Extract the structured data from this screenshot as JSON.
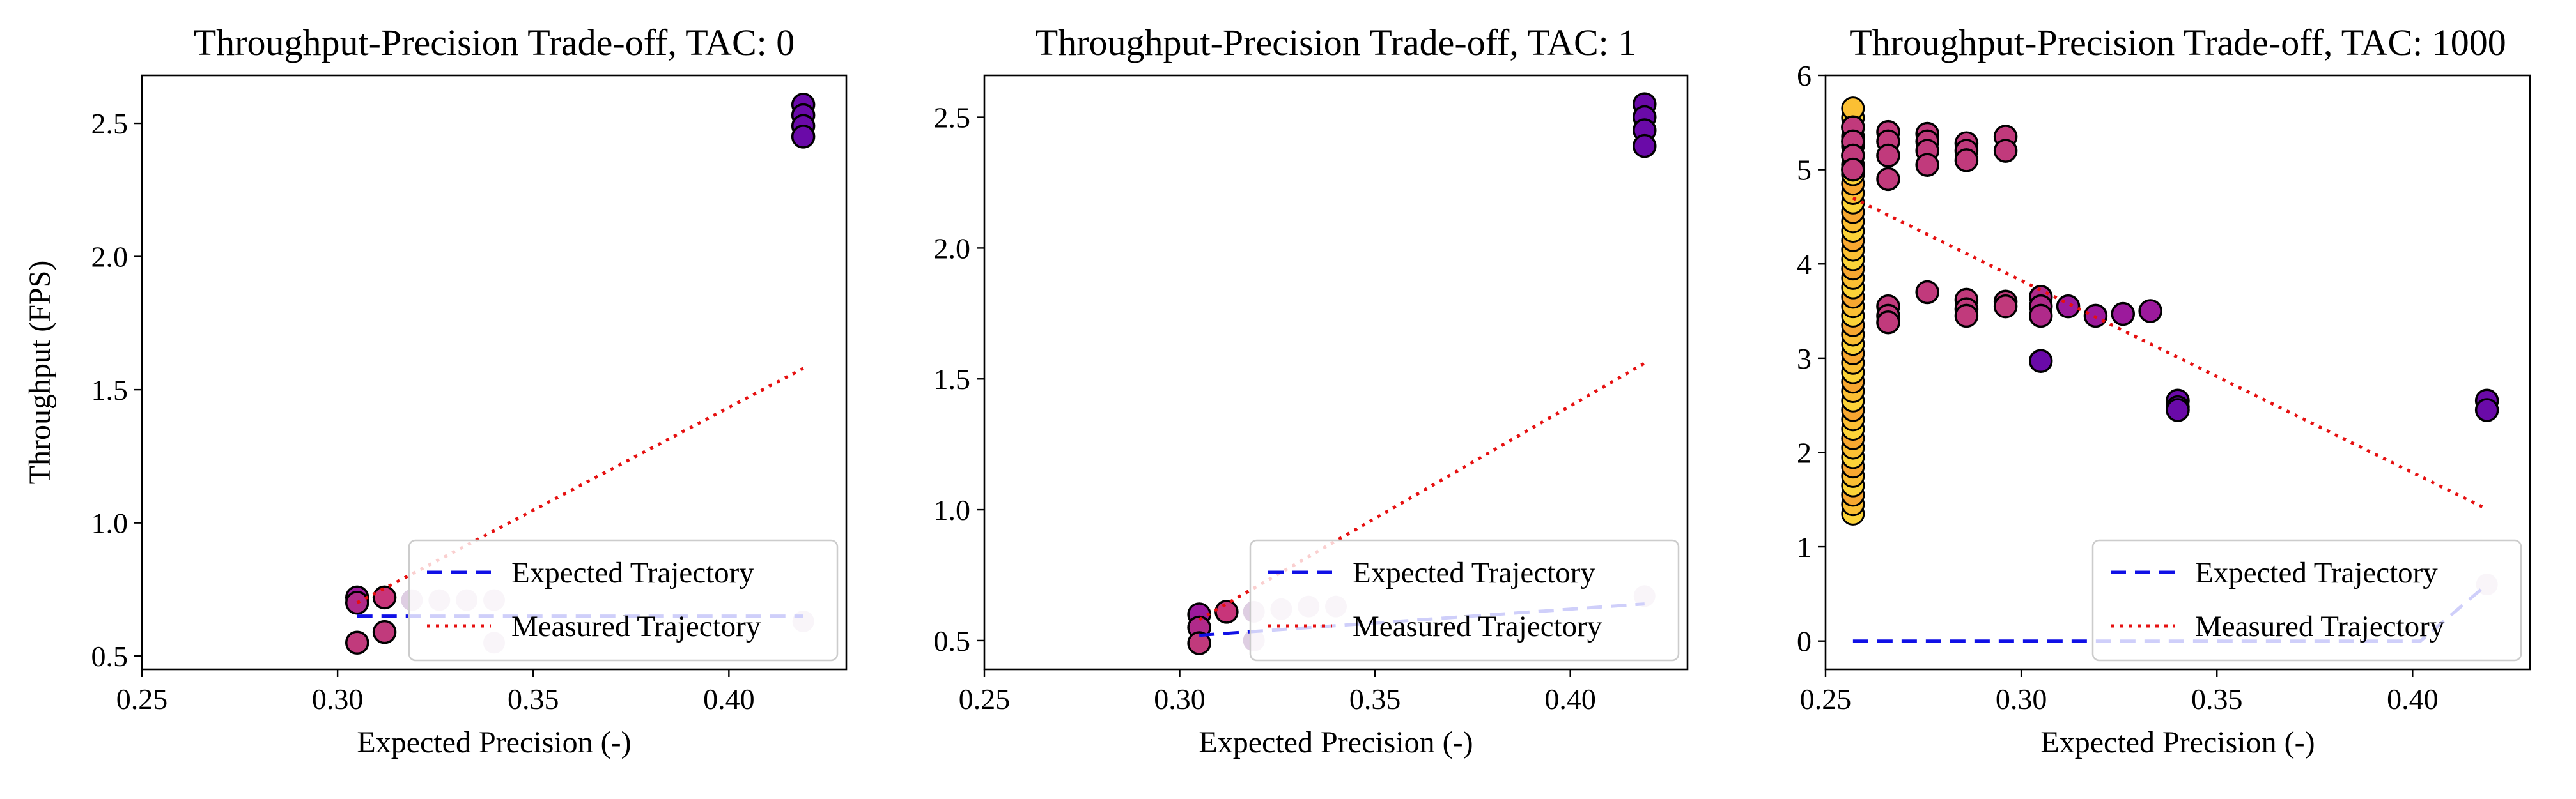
{
  "figure": {
    "ylabel": "Throughput (FPS)",
    "legend": {
      "placement": "lower right"
    }
  },
  "chart_data": [
    {
      "type": "scatter",
      "title": "Throughput-Precision Trade-off, TAC: 0",
      "xlabel": "Expected Precision (-)",
      "ylabel": "Throughput (FPS)",
      "xlim": [
        0.25,
        0.43
      ],
      "ylim": [
        0.45,
        2.68
      ],
      "xticks": [
        0.25,
        0.3,
        0.35,
        0.4
      ],
      "xtick_labels": [
        "0.25",
        "0.30",
        "0.35",
        "0.40"
      ],
      "yticks": [
        0.5,
        1.0,
        1.5,
        2.0,
        2.5
      ],
      "ytick_labels": [
        "0.5",
        "1.0",
        "1.5",
        "2.0",
        "2.5"
      ],
      "grid": false,
      "legend_placement": "lower right",
      "points": [
        {
          "x": 0.419,
          "y": 2.57,
          "color": "#6a0aa8",
          "outline": true
        },
        {
          "x": 0.419,
          "y": 2.53,
          "color": "#6a0aa8",
          "outline": true
        },
        {
          "x": 0.419,
          "y": 2.49,
          "color": "#6a0aa8",
          "outline": true
        },
        {
          "x": 0.419,
          "y": 2.45,
          "color": "#6a0aa8",
          "outline": true
        },
        {
          "x": 0.305,
          "y": 0.72,
          "color": "#9c1a9c",
          "outline": true
        },
        {
          "x": 0.305,
          "y": 0.7,
          "color": "#b02a8a",
          "outline": true
        },
        {
          "x": 0.305,
          "y": 0.55,
          "color": "#c13a7c",
          "outline": true
        },
        {
          "x": 0.312,
          "y": 0.72,
          "color": "#c8357a",
          "outline": true
        },
        {
          "x": 0.312,
          "y": 0.59,
          "color": "#c13a7c",
          "outline": true
        },
        {
          "x": 0.319,
          "y": 0.71,
          "color": "#d8c6dd",
          "outline": false
        },
        {
          "x": 0.326,
          "y": 0.71,
          "color": "#d8c6dd",
          "outline": false
        },
        {
          "x": 0.333,
          "y": 0.71,
          "color": "#d8c6dd",
          "outline": false
        },
        {
          "x": 0.34,
          "y": 0.71,
          "color": "#d8c6dd",
          "outline": false
        },
        {
          "x": 0.34,
          "y": 0.55,
          "color": "#d8c6dd",
          "outline": false
        },
        {
          "x": 0.419,
          "y": 0.63,
          "color": "#d8c6dd",
          "outline": false
        }
      ],
      "series": [
        {
          "name": "Expected Trajectory",
          "style": "dashed",
          "color": "#1010e6",
          "x": [
            0.305,
            0.419
          ],
          "y": [
            0.65,
            0.65
          ]
        },
        {
          "name": "Measured Trajectory",
          "style": "dotted",
          "color": "#e61010",
          "x": [
            0.305,
            0.419
          ],
          "y": [
            0.7,
            1.58
          ]
        }
      ]
    },
    {
      "type": "scatter",
      "title": "Throughput-Precision Trade-off, TAC: 1",
      "xlabel": "Expected Precision (-)",
      "ylabel": "",
      "xlim": [
        0.25,
        0.43
      ],
      "ylim": [
        0.39,
        2.66
      ],
      "xticks": [
        0.25,
        0.3,
        0.35,
        0.4
      ],
      "xtick_labels": [
        "0.25",
        "0.30",
        "0.35",
        "0.40"
      ],
      "yticks": [
        0.5,
        1.0,
        1.5,
        2.0,
        2.5
      ],
      "ytick_labels": [
        "0.5",
        "1.0",
        "1.5",
        "2.0",
        "2.5"
      ],
      "grid": false,
      "legend_placement": "lower right",
      "points": [
        {
          "x": 0.419,
          "y": 2.55,
          "color": "#6a0aa8",
          "outline": true
        },
        {
          "x": 0.419,
          "y": 2.5,
          "color": "#6a0aa8",
          "outline": true
        },
        {
          "x": 0.419,
          "y": 2.45,
          "color": "#6a0aa8",
          "outline": true
        },
        {
          "x": 0.419,
          "y": 2.39,
          "color": "#6a0aa8",
          "outline": true
        },
        {
          "x": 0.305,
          "y": 0.6,
          "color": "#9c1a9c",
          "outline": true
        },
        {
          "x": 0.305,
          "y": 0.55,
          "color": "#b02a8a",
          "outline": true
        },
        {
          "x": 0.305,
          "y": 0.49,
          "color": "#c13a7c",
          "outline": true
        },
        {
          "x": 0.312,
          "y": 0.61,
          "color": "#c8357a",
          "outline": true
        },
        {
          "x": 0.319,
          "y": 0.61,
          "color": "#d8c6dd",
          "outline": false
        },
        {
          "x": 0.319,
          "y": 0.5,
          "color": "#d8c6dd",
          "outline": false
        },
        {
          "x": 0.326,
          "y": 0.62,
          "color": "#d8c6dd",
          "outline": false
        },
        {
          "x": 0.333,
          "y": 0.63,
          "color": "#d8c6dd",
          "outline": false
        },
        {
          "x": 0.34,
          "y": 0.63,
          "color": "#d8c6dd",
          "outline": false
        },
        {
          "x": 0.419,
          "y": 0.67,
          "color": "#d8c6dd",
          "outline": false
        }
      ],
      "series": [
        {
          "name": "Expected Trajectory",
          "style": "dashed",
          "color": "#1010e6",
          "x": [
            0.305,
            0.419
          ],
          "y": [
            0.52,
            0.64
          ]
        },
        {
          "name": "Measured Trajectory",
          "style": "dotted",
          "color": "#e61010",
          "x": [
            0.305,
            0.419
          ],
          "y": [
            0.58,
            1.56
          ]
        }
      ]
    },
    {
      "type": "scatter",
      "title": "Throughput-Precision Trade-off, TAC: 1000",
      "xlabel": "Expected Precision (-)",
      "ylabel": "",
      "xlim": [
        0.25,
        0.43
      ],
      "ylim": [
        -0.3,
        6.0
      ],
      "xticks": [
        0.25,
        0.3,
        0.35,
        0.4
      ],
      "xtick_labels": [
        "0.25",
        "0.30",
        "0.35",
        "0.40"
      ],
      "yticks": [
        0,
        1,
        2,
        3,
        4,
        5,
        6
      ],
      "ytick_labels": [
        "0",
        "1",
        "2",
        "3",
        "4",
        "5",
        "6"
      ],
      "grid": false,
      "legend_placement": "lower right",
      "vertical_stack": {
        "x": 0.257,
        "y_from": 1.35,
        "y_to": 5.68,
        "step": 0.1,
        "colors": [
          "#fcd338",
          "#fbbf33",
          "#f7a730"
        ]
      },
      "points": [
        {
          "x": 0.257,
          "y": 5.45,
          "color": "#c13a7c",
          "outline": true
        },
        {
          "x": 0.257,
          "y": 5.3,
          "color": "#c13a7c",
          "outline": true
        },
        {
          "x": 0.257,
          "y": 5.15,
          "color": "#c13a7c",
          "outline": true
        },
        {
          "x": 0.257,
          "y": 5.0,
          "color": "#c13a7c",
          "outline": true
        },
        {
          "x": 0.266,
          "y": 5.4,
          "color": "#c13a7c",
          "outline": true
        },
        {
          "x": 0.266,
          "y": 5.3,
          "color": "#c13a7c",
          "outline": true
        },
        {
          "x": 0.266,
          "y": 5.15,
          "color": "#c13a7c",
          "outline": true
        },
        {
          "x": 0.266,
          "y": 4.9,
          "color": "#c13a7c",
          "outline": true
        },
        {
          "x": 0.266,
          "y": 3.55,
          "color": "#c13a7c",
          "outline": true
        },
        {
          "x": 0.266,
          "y": 3.45,
          "color": "#c13a7c",
          "outline": true
        },
        {
          "x": 0.266,
          "y": 3.38,
          "color": "#c13a7c",
          "outline": true
        },
        {
          "x": 0.276,
          "y": 5.38,
          "color": "#c13a7c",
          "outline": true
        },
        {
          "x": 0.276,
          "y": 5.3,
          "color": "#c13a7c",
          "outline": true
        },
        {
          "x": 0.276,
          "y": 5.2,
          "color": "#c13a7c",
          "outline": true
        },
        {
          "x": 0.276,
          "y": 5.05,
          "color": "#c13a7c",
          "outline": true
        },
        {
          "x": 0.276,
          "y": 3.7,
          "color": "#c13a7c",
          "outline": true
        },
        {
          "x": 0.286,
          "y": 5.28,
          "color": "#c13a7c",
          "outline": true
        },
        {
          "x": 0.286,
          "y": 5.2,
          "color": "#c13a7c",
          "outline": true
        },
        {
          "x": 0.286,
          "y": 5.1,
          "color": "#c13a7c",
          "outline": true
        },
        {
          "x": 0.286,
          "y": 3.62,
          "color": "#c13a7c",
          "outline": true
        },
        {
          "x": 0.286,
          "y": 3.52,
          "color": "#c13a7c",
          "outline": true
        },
        {
          "x": 0.286,
          "y": 3.45,
          "color": "#c13a7c",
          "outline": true
        },
        {
          "x": 0.296,
          "y": 5.35,
          "color": "#c13a7c",
          "outline": true
        },
        {
          "x": 0.296,
          "y": 5.2,
          "color": "#c13a7c",
          "outline": true
        },
        {
          "x": 0.296,
          "y": 3.6,
          "color": "#c13a7c",
          "outline": true
        },
        {
          "x": 0.296,
          "y": 3.55,
          "color": "#c13a7c",
          "outline": true
        },
        {
          "x": 0.305,
          "y": 3.65,
          "color": "#b02a8a",
          "outline": true
        },
        {
          "x": 0.305,
          "y": 3.55,
          "color": "#b02a8a",
          "outline": true
        },
        {
          "x": 0.305,
          "y": 3.45,
          "color": "#b02a8a",
          "outline": true
        },
        {
          "x": 0.305,
          "y": 2.97,
          "color": "#6a0aa8",
          "outline": true
        },
        {
          "x": 0.312,
          "y": 3.55,
          "color": "#9c1a9c",
          "outline": true
        },
        {
          "x": 0.319,
          "y": 3.45,
          "color": "#9c1a9c",
          "outline": true
        },
        {
          "x": 0.326,
          "y": 3.47,
          "color": "#9c1a9c",
          "outline": true
        },
        {
          "x": 0.333,
          "y": 3.5,
          "color": "#9c1a9c",
          "outline": true
        },
        {
          "x": 0.34,
          "y": 2.55,
          "color": "#6a0aa8",
          "outline": true
        },
        {
          "x": 0.34,
          "y": 2.48,
          "color": "#6a0aa8",
          "outline": true
        },
        {
          "x": 0.34,
          "y": 2.45,
          "color": "#6a0aa8",
          "outline": true
        },
        {
          "x": 0.419,
          "y": 2.55,
          "color": "#6a0aa8",
          "outline": true
        },
        {
          "x": 0.419,
          "y": 2.45,
          "color": "#6a0aa8",
          "outline": true
        },
        {
          "x": 0.419,
          "y": 0.6,
          "color": "#d8c6dd",
          "outline": false
        }
      ],
      "series": [
        {
          "name": "Expected Trajectory",
          "style": "dashed",
          "color": "#1010e6",
          "x": [
            0.257,
            0.402,
            0.419
          ],
          "y": [
            0.0,
            0.0,
            0.6
          ]
        },
        {
          "name": "Measured Trajectory",
          "style": "dotted",
          "color": "#e61010",
          "x": [
            0.257,
            0.419
          ],
          "y": [
            4.7,
            1.4
          ]
        }
      ]
    }
  ]
}
